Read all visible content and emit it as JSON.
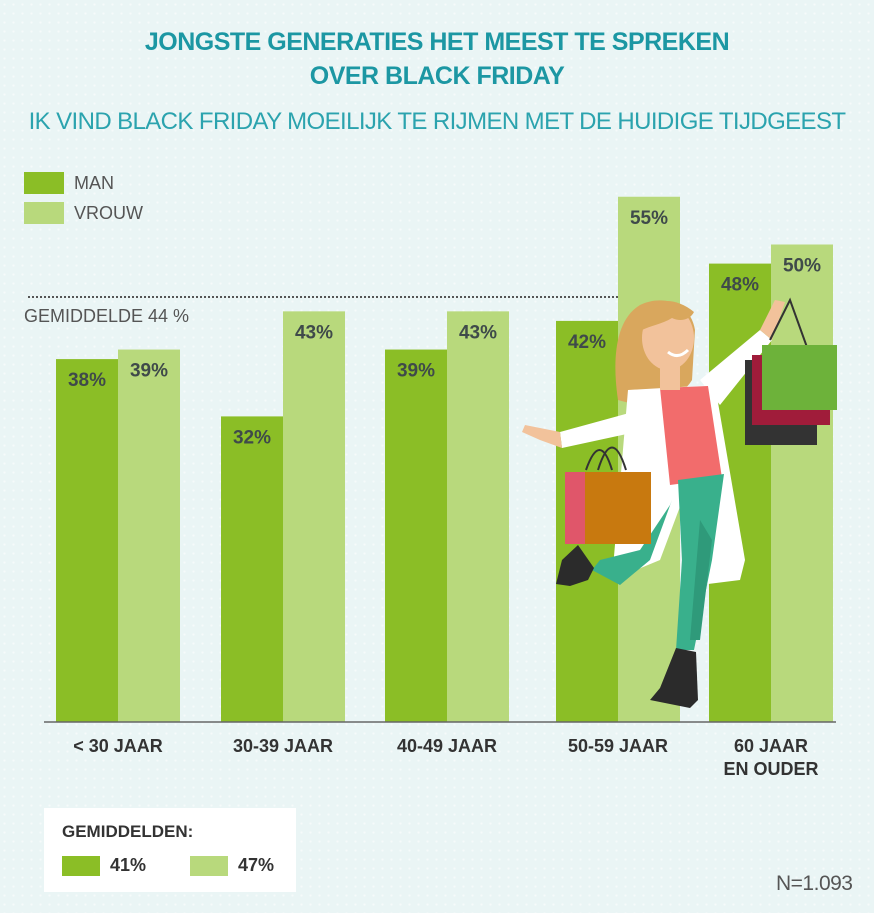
{
  "title_line1": "JONGSTE GENERATIES HET MEEST TE SPREKEN",
  "title_line2": "OVER BLACK FRIDAY",
  "subtitle": "IK VIND BLACK FRIDAY MOEILIJK TE RIJMEN MET DE HUIDIGE TIJDGEEST",
  "average_label": "GEMIDDELDE 44 %",
  "colors": {
    "man": "#8bbe26",
    "vrouw": "#b8d97c",
    "title": "#1c97a3"
  },
  "chart_data": {
    "type": "bar",
    "title": "JONGSTE GENERATIES HET MEEST TE SPREKEN OVER BLACK FRIDAY",
    "subtitle": "IK VIND BLACK FRIDAY MOEILIJK TE RIJMEN MET DE HUIDIGE TIJDGEEST",
    "categories": [
      [
        "< 30 JAAR"
      ],
      [
        "30-39 JAAR"
      ],
      [
        "40-49 JAAR"
      ],
      [
        "50-59 JAAR"
      ],
      [
        "60 JAAR",
        "EN OUDER"
      ]
    ],
    "series": [
      {
        "name": "MAN",
        "values": [
          38,
          32,
          39,
          42,
          48
        ],
        "labels": [
          "38%",
          "32%",
          "39%",
          "42%",
          "48%"
        ]
      },
      {
        "name": "VROUW",
        "values": [
          39,
          43,
          43,
          55,
          50
        ],
        "labels": [
          "39%",
          "43%",
          "43%",
          "55%",
          "50%"
        ]
      }
    ],
    "average_line": 44,
    "ylim": [
      0,
      56
    ],
    "legend": "top-left",
    "grid": false
  },
  "summary": {
    "title": "GEMIDDELDEN:",
    "man": "41%",
    "vrouw": "47%"
  },
  "sample_size": "N=1.093"
}
